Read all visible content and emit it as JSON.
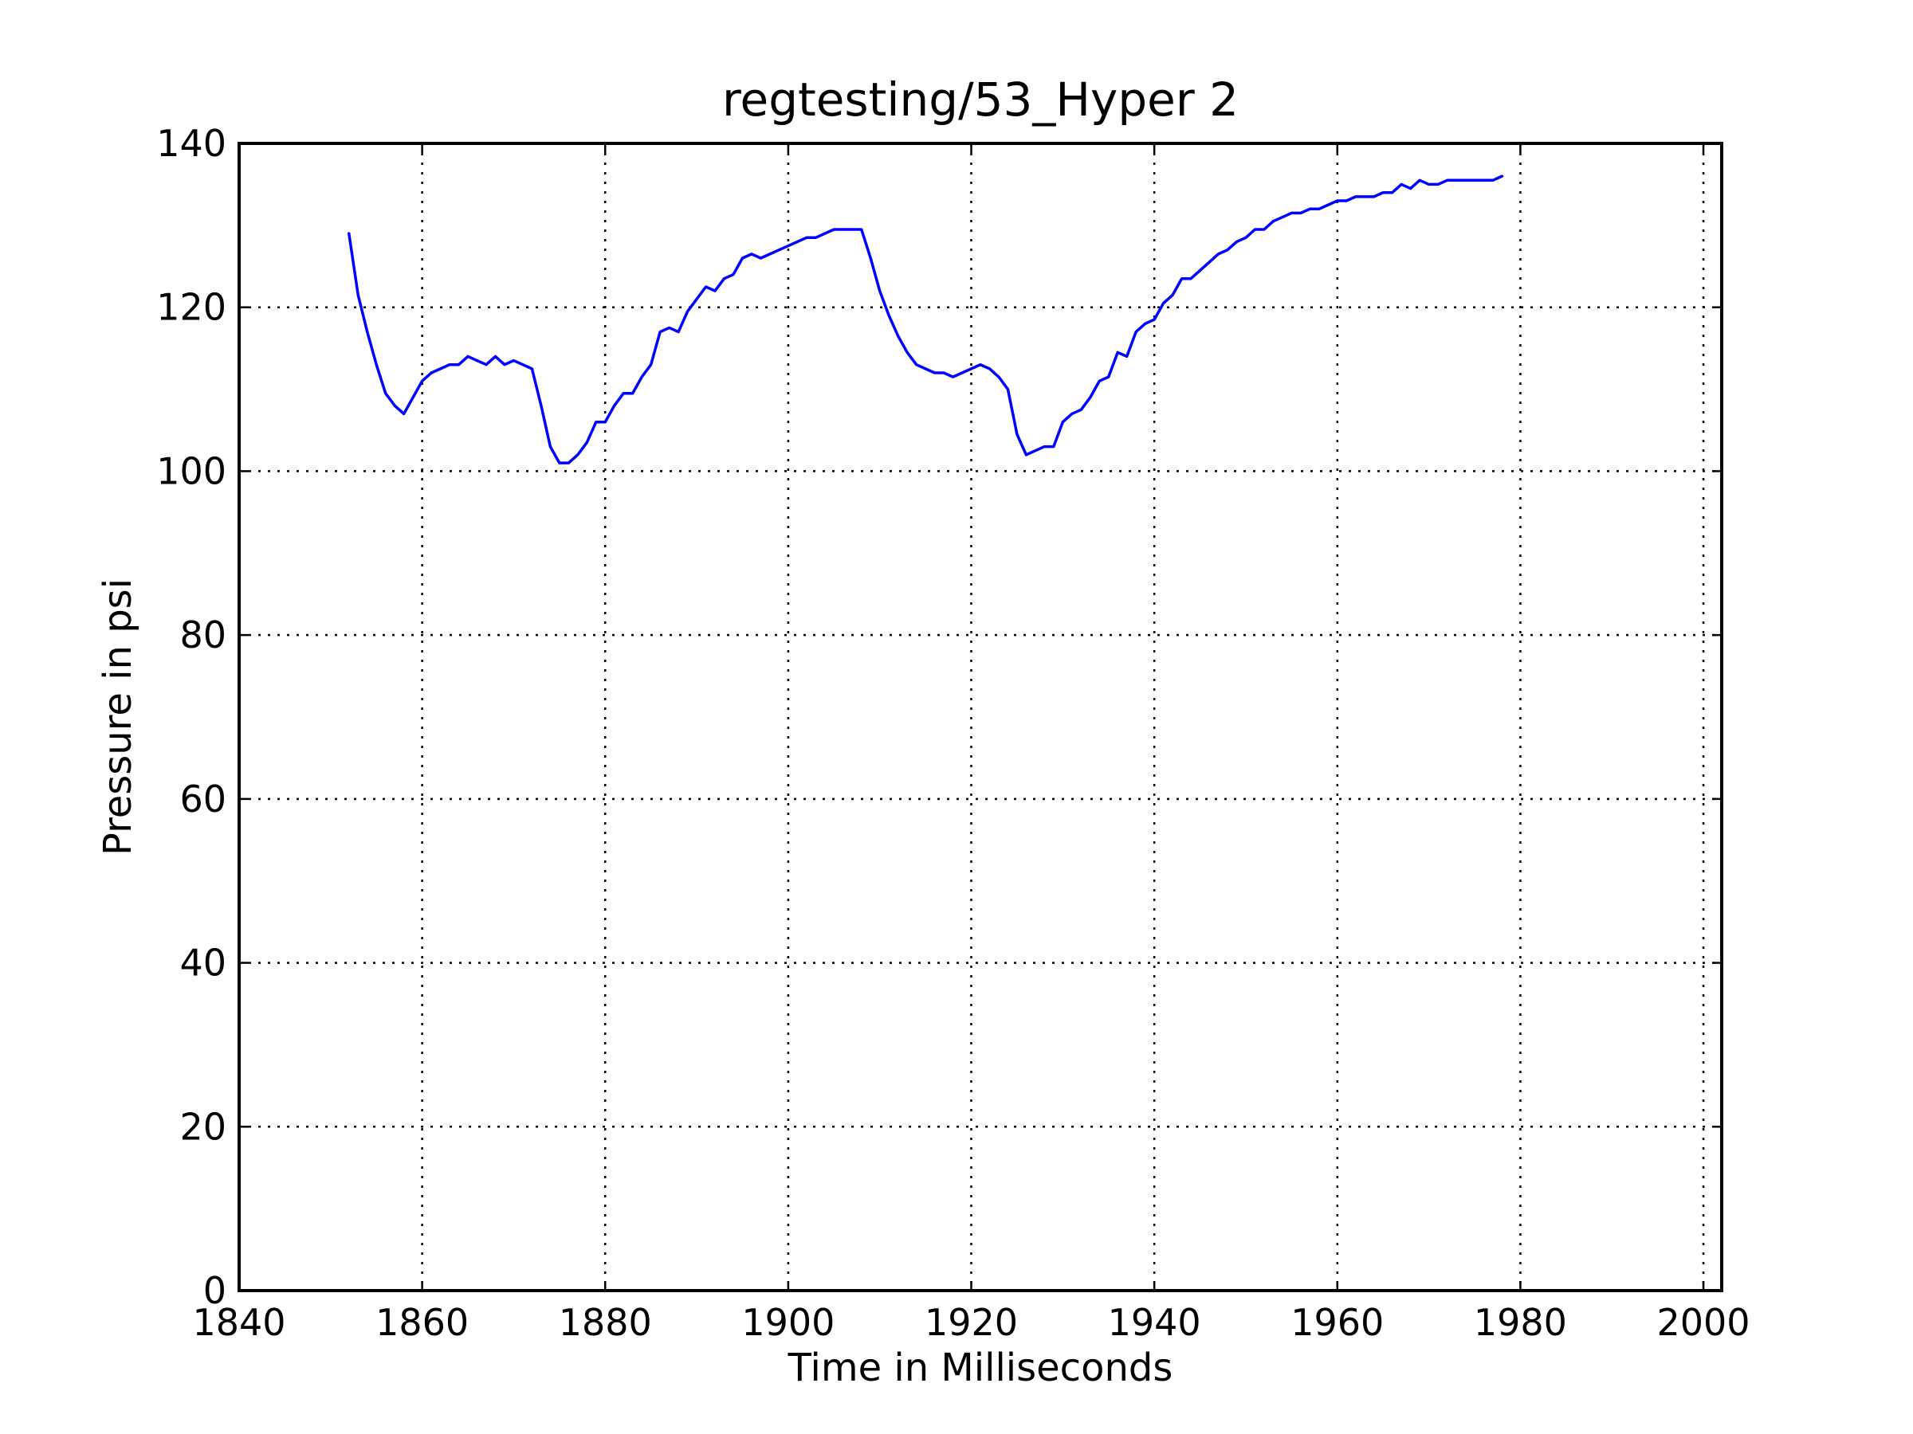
{
  "chart_data": {
    "type": "line",
    "title": "regtesting/53_Hyper 2",
    "xlabel": "Time in Milliseconds",
    "ylabel": "Pressure in psi",
    "xlim": [
      1840,
      2002
    ],
    "ylim": [
      0,
      140
    ],
    "xticks": [
      1840,
      1860,
      1880,
      1900,
      1920,
      1940,
      1960,
      1980,
      2000
    ],
    "xtick_labels": [
      "1840",
      "1860",
      "1880",
      "1900",
      "1920",
      "1940",
      "1960",
      "1980",
      "2000"
    ],
    "yticks": [
      0,
      20,
      40,
      60,
      80,
      100,
      120,
      140
    ],
    "ytick_labels": [
      "0",
      "20",
      "40",
      "60",
      "80",
      "100",
      "120",
      "140"
    ],
    "grid": true,
    "line_color": "#0000ff",
    "series": [
      {
        "name": "Pressure",
        "x": [
          1852,
          1853,
          1854,
          1855,
          1856,
          1857,
          1858,
          1859,
          1860,
          1861,
          1862,
          1863,
          1864,
          1865,
          1866,
          1867,
          1868,
          1869,
          1870,
          1871,
          1872,
          1873,
          1874,
          1875,
          1876,
          1877,
          1878,
          1879,
          1880,
          1881,
          1882,
          1883,
          1884,
          1885,
          1886,
          1887,
          1888,
          1889,
          1890,
          1891,
          1892,
          1893,
          1894,
          1895,
          1896,
          1897,
          1898,
          1899,
          1900,
          1901,
          1902,
          1903,
          1904,
          1905,
          1906,
          1907,
          1908,
          1909,
          1910,
          1911,
          1912,
          1913,
          1914,
          1915,
          1916,
          1917,
          1918,
          1919,
          1920,
          1921,
          1922,
          1923,
          1924,
          1925,
          1926,
          1927,
          1928,
          1929,
          1930,
          1931,
          1932,
          1933,
          1934,
          1935,
          1936,
          1937,
          1938,
          1939,
          1940,
          1941,
          1942,
          1943,
          1944,
          1945,
          1946,
          1947,
          1948,
          1949,
          1950,
          1951,
          1952,
          1953,
          1954,
          1955,
          1956,
          1957,
          1958,
          1959,
          1960,
          1961,
          1962,
          1963,
          1964,
          1965,
          1966,
          1967,
          1968,
          1969,
          1970,
          1971,
          1972,
          1973,
          1974,
          1975,
          1976,
          1977,
          1978
        ],
        "values": [
          129,
          121.5,
          117,
          113,
          109.5,
          108,
          107,
          109,
          111,
          112,
          112.5,
          113,
          113,
          114,
          113.5,
          113,
          114,
          113,
          113.5,
          113,
          112.5,
          108,
          103,
          101,
          101,
          102,
          103.5,
          106,
          106,
          108,
          109.5,
          109.5,
          111.5,
          113,
          117,
          117.5,
          117,
          119.5,
          121,
          122.5,
          122,
          123.5,
          124,
          126,
          126.5,
          126,
          126.5,
          127,
          127.5,
          128,
          128.5,
          128.5,
          129,
          129.5,
          129.5,
          129.5,
          129.5,
          126,
          122,
          119,
          116.5,
          114.5,
          113,
          112.5,
          112,
          112,
          111.5,
          112,
          112.5,
          113,
          112.5,
          111.5,
          110,
          104.5,
          102,
          102.5,
          103,
          103,
          106,
          107,
          107.5,
          109,
          111,
          111.5,
          114.5,
          114,
          117,
          118,
          118.5,
          120.5,
          121.5,
          123.5,
          123.5,
          124.5,
          125.5,
          126.5,
          127,
          128,
          128.5,
          129.5,
          129.5,
          130.5,
          131,
          131.5,
          131.5,
          132,
          132,
          132.5,
          133,
          133,
          133.5,
          133.5,
          133.5,
          134,
          134,
          135,
          134.5,
          135.5,
          135,
          135,
          135.5,
          135.5,
          135.5,
          135.5,
          135.5,
          135.5,
          136
        ]
      }
    ]
  }
}
